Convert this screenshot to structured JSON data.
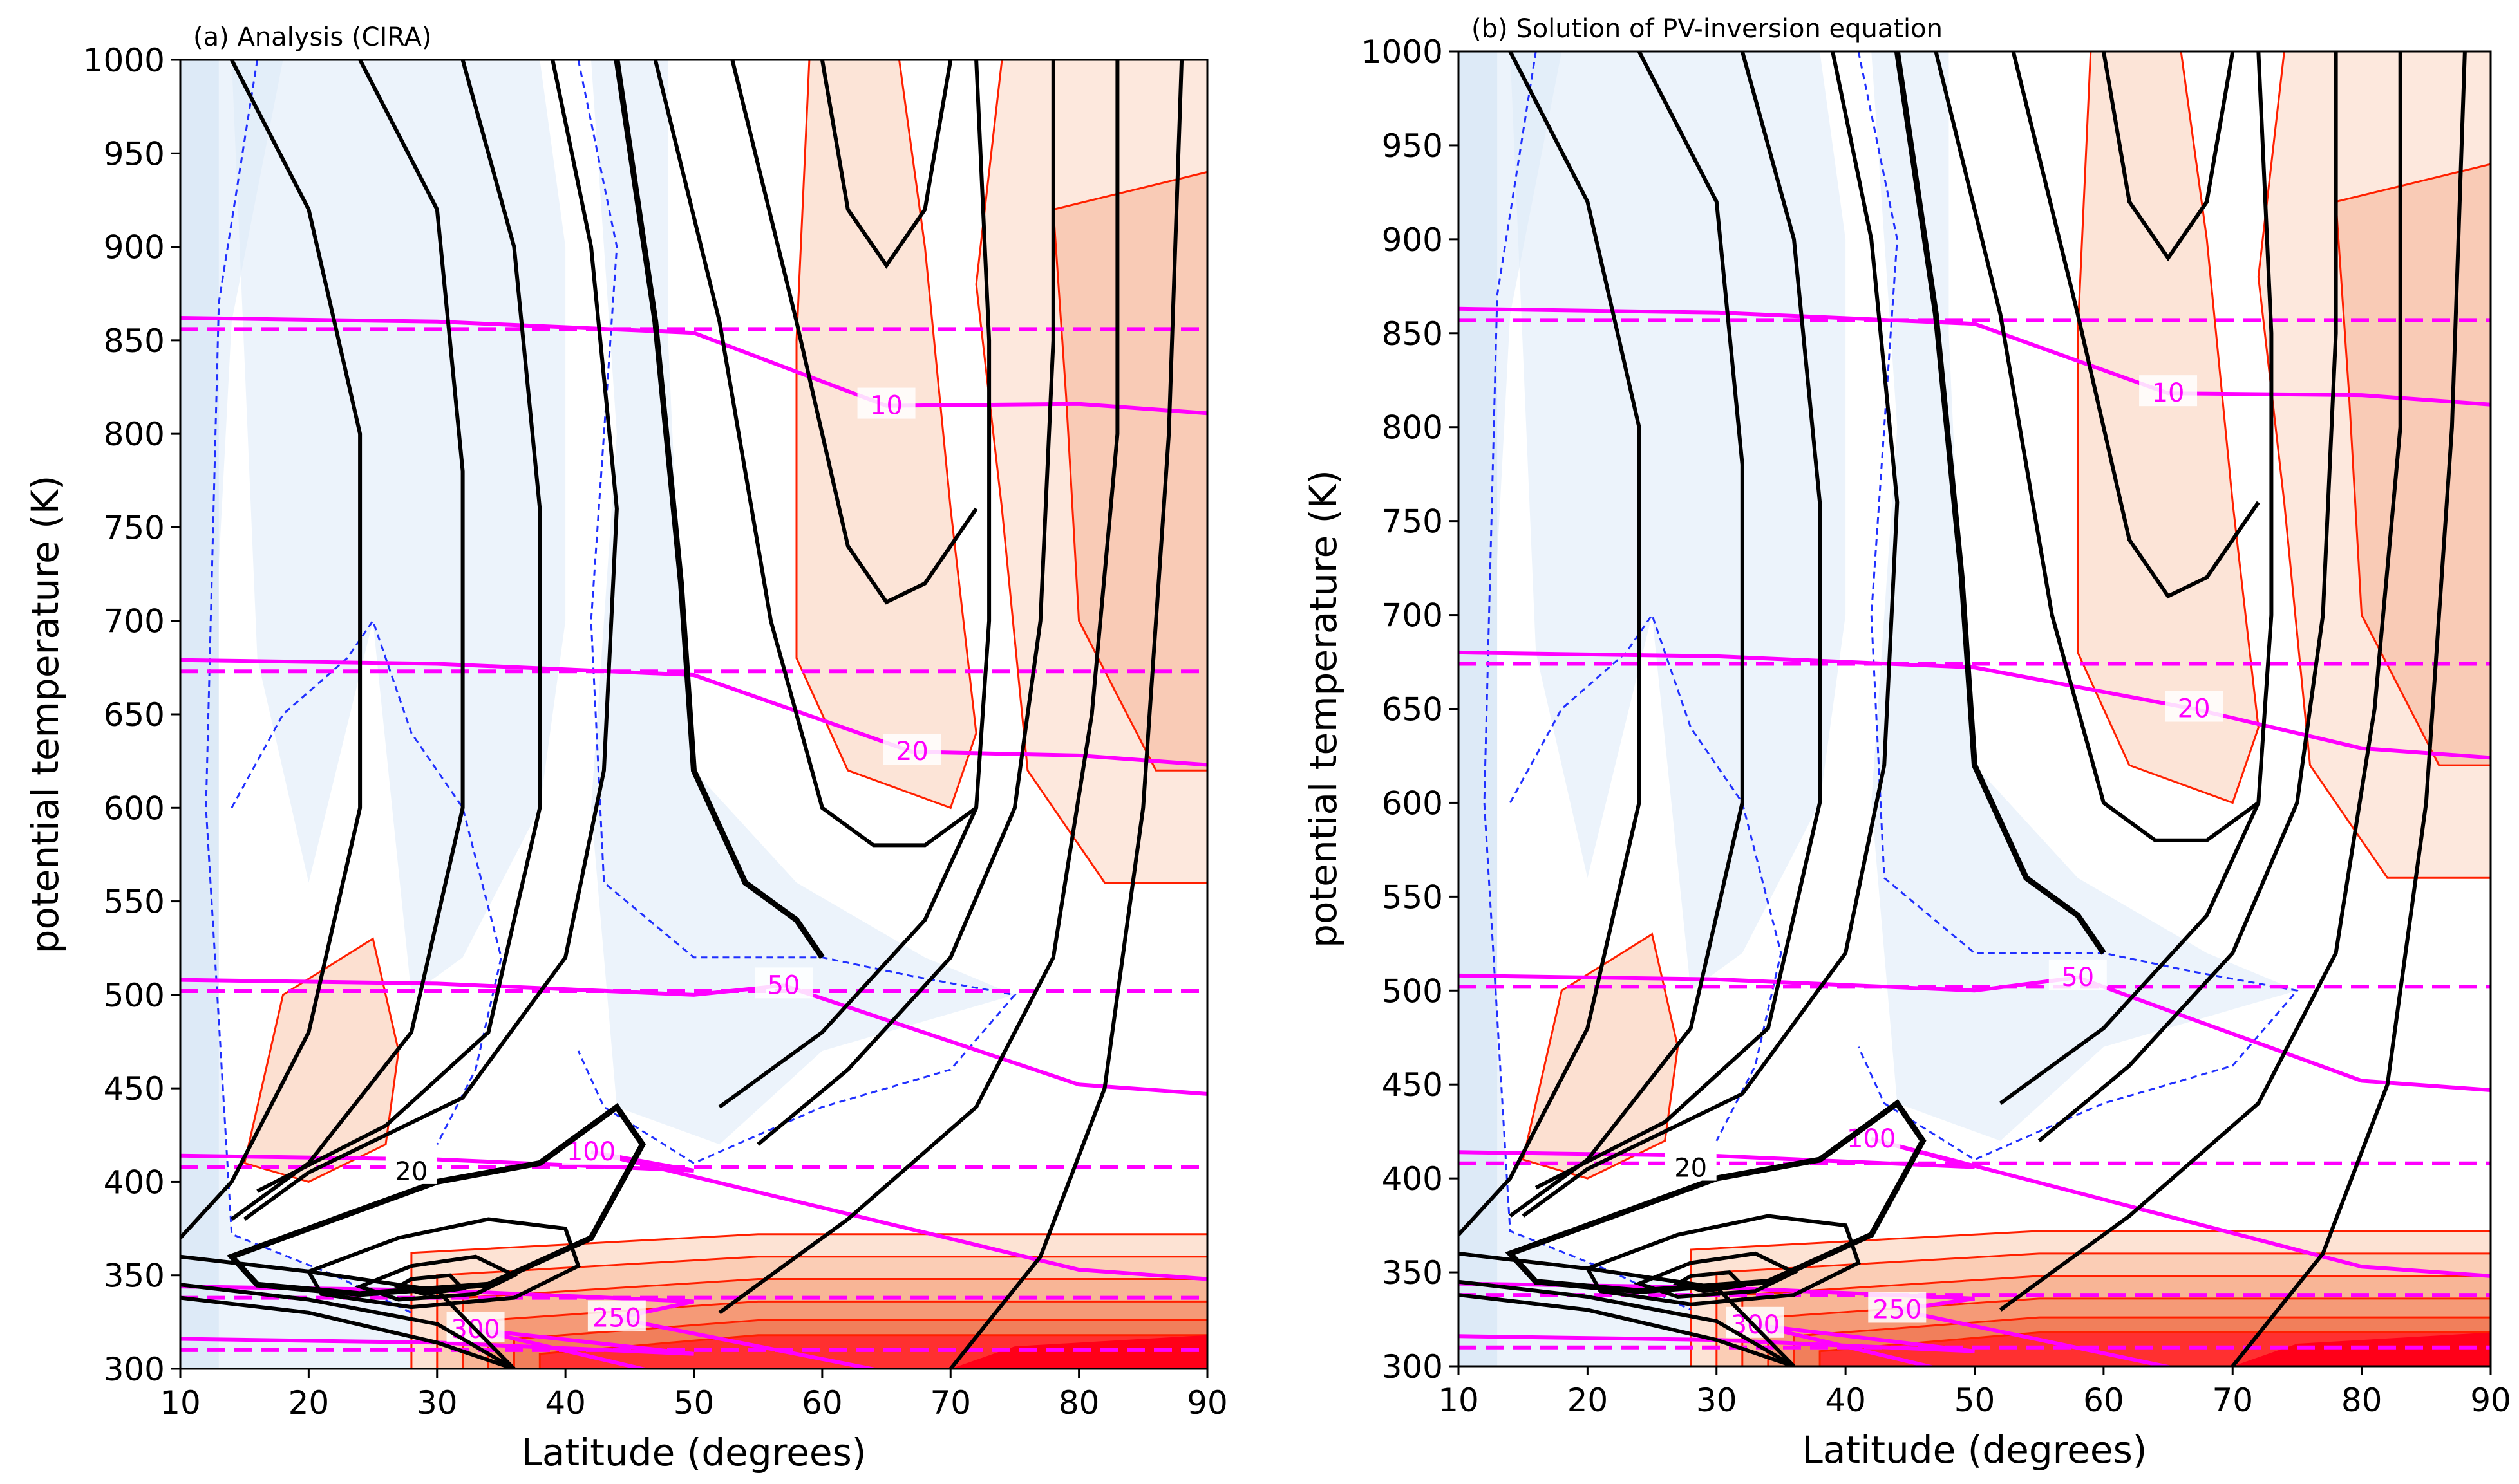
{
  "colors": {
    "wind_contour": "#000000",
    "pv_solid": "#ff00ff",
    "pv_dashed": "#ff00ff",
    "positive_fill": "#fbd8c6",
    "positive_line": "#ff2000",
    "negative_fill": "#ddeaf7",
    "negative_line": "#2030ff",
    "strong_positive": "#ff0018"
  },
  "chart_data": [
    {
      "type": "contour",
      "title": "(a) Analysis (CIRA)",
      "xlabel": "Latitude (degrees)",
      "ylabel": "potential temperature (K)",
      "xlim": [
        10,
        90
      ],
      "ylim": [
        300,
        1000
      ],
      "x_ticks": [
        10,
        20,
        30,
        40,
        50,
        60,
        70,
        80,
        90
      ],
      "y_ticks": [
        300,
        350,
        400,
        450,
        500,
        550,
        600,
        650,
        700,
        750,
        800,
        850,
        900,
        950,
        1000
      ],
      "wind_contour_label": "20",
      "pv_contours": [
        {
          "label": "10",
          "latitude": 65,
          "theta": 815,
          "dashed_reference_theta": 856
        },
        {
          "label": "20",
          "latitude": 67,
          "theta": 630,
          "dashed_reference_theta": 673
        },
        {
          "label": "50",
          "latitude": 57,
          "theta": 505,
          "dashed_reference_theta": 502
        },
        {
          "label": "100",
          "latitude": 42,
          "theta": 416,
          "dashed_reference_theta": 408
        },
        {
          "label": "250",
          "latitude": 44,
          "theta": 327,
          "dashed_reference_theta": 338
        },
        {
          "label": "300",
          "latitude": 33,
          "theta": 321,
          "dashed_reference_theta": 310
        }
      ]
    },
    {
      "type": "contour",
      "title": "(b) Solution of PV-inversion equation",
      "xlabel": "Latitude (degrees)",
      "ylabel": "potential temperature (K)",
      "xlim": [
        10,
        90
      ],
      "ylim": [
        300,
        1000
      ],
      "x_ticks": [
        10,
        20,
        30,
        40,
        50,
        60,
        70,
        80,
        90
      ],
      "y_ticks": [
        300,
        350,
        400,
        450,
        500,
        550,
        600,
        650,
        700,
        750,
        800,
        850,
        900,
        950,
        1000
      ],
      "wind_contour_label": "20",
      "pv_contours": [
        {
          "label": "10",
          "latitude": 65,
          "theta": 818,
          "dashed_reference_theta": 857
        },
        {
          "label": "20",
          "latitude": 67,
          "theta": 650,
          "dashed_reference_theta": 674
        },
        {
          "label": "50",
          "latitude": 58,
          "theta": 507,
          "dashed_reference_theta": 502
        },
        {
          "label": "100",
          "latitude": 42,
          "theta": 421,
          "dashed_reference_theta": 408
        },
        {
          "label": "250",
          "latitude": 44,
          "theta": 330,
          "dashed_reference_theta": 338
        },
        {
          "label": "300",
          "latitude": 33,
          "theta": 322,
          "dashed_reference_theta": 310
        }
      ]
    }
  ]
}
